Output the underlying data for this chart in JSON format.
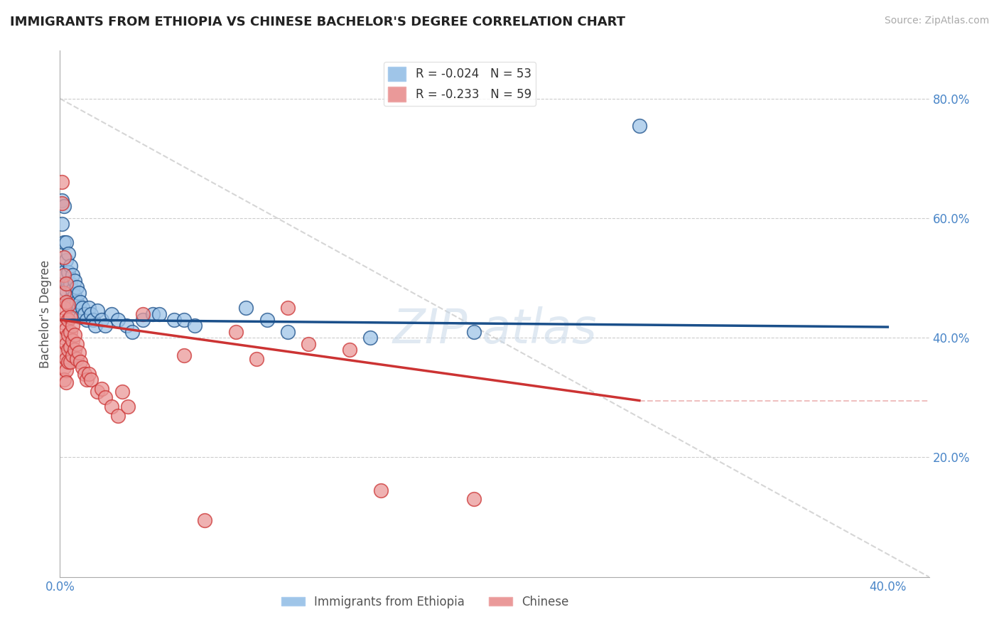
{
  "title": "IMMIGRANTS FROM ETHIOPIA VS CHINESE BACHELOR'S DEGREE CORRELATION CHART",
  "source": "Source: ZipAtlas.com",
  "ylabel": "Bachelor's Degree",
  "xlim": [
    0.0,
    0.42
  ],
  "ylim": [
    0.0,
    0.88
  ],
  "x_ticks": [
    0.0,
    0.05,
    0.1,
    0.15,
    0.2,
    0.25,
    0.3,
    0.35,
    0.4
  ],
  "y_ticks": [
    0.0,
    0.2,
    0.4,
    0.6,
    0.8
  ],
  "legend_blue_label": "R = -0.024   N = 53",
  "legend_pink_label": "R = -0.233   N = 59",
  "legend_bottom_blue": "Immigrants from Ethiopia",
  "legend_bottom_pink": "Chinese",
  "blue_color": "#9fc5e8",
  "pink_color": "#ea9999",
  "blue_line_color": "#1a4f8a",
  "pink_line_color": "#cc3333",
  "watermark": "ZIP atlas",
  "background_color": "#ffffff",
  "grid_color": "#cccccc",
  "title_color": "#222222",
  "tick_label_color": "#4a86c8",
  "blue_scatter": [
    [
      0.001,
      0.63
    ],
    [
      0.001,
      0.59
    ],
    [
      0.002,
      0.62
    ],
    [
      0.002,
      0.56
    ],
    [
      0.002,
      0.51
    ],
    [
      0.003,
      0.56
    ],
    [
      0.003,
      0.53
    ],
    [
      0.003,
      0.49
    ],
    [
      0.003,
      0.48
    ],
    [
      0.004,
      0.54
    ],
    [
      0.004,
      0.51
    ],
    [
      0.004,
      0.49
    ],
    [
      0.004,
      0.46
    ],
    [
      0.005,
      0.52
    ],
    [
      0.005,
      0.49
    ],
    [
      0.005,
      0.465
    ],
    [
      0.006,
      0.505
    ],
    [
      0.006,
      0.48
    ],
    [
      0.006,
      0.455
    ],
    [
      0.007,
      0.495
    ],
    [
      0.007,
      0.47
    ],
    [
      0.008,
      0.485
    ],
    [
      0.008,
      0.46
    ],
    [
      0.009,
      0.475
    ],
    [
      0.009,
      0.45
    ],
    [
      0.01,
      0.46
    ],
    [
      0.01,
      0.435
    ],
    [
      0.011,
      0.45
    ],
    [
      0.012,
      0.44
    ],
    [
      0.013,
      0.43
    ],
    [
      0.014,
      0.45
    ],
    [
      0.015,
      0.44
    ],
    [
      0.016,
      0.43
    ],
    [
      0.017,
      0.42
    ],
    [
      0.018,
      0.445
    ],
    [
      0.02,
      0.43
    ],
    [
      0.022,
      0.42
    ],
    [
      0.025,
      0.44
    ],
    [
      0.028,
      0.43
    ],
    [
      0.032,
      0.42
    ],
    [
      0.035,
      0.41
    ],
    [
      0.04,
      0.43
    ],
    [
      0.045,
      0.44
    ],
    [
      0.048,
      0.44
    ],
    [
      0.055,
      0.43
    ],
    [
      0.06,
      0.43
    ],
    [
      0.065,
      0.42
    ],
    [
      0.09,
      0.45
    ],
    [
      0.1,
      0.43
    ],
    [
      0.11,
      0.41
    ],
    [
      0.15,
      0.4
    ],
    [
      0.2,
      0.41
    ],
    [
      0.28,
      0.755
    ]
  ],
  "pink_scatter": [
    [
      0.001,
      0.66
    ],
    [
      0.001,
      0.625
    ],
    [
      0.002,
      0.535
    ],
    [
      0.002,
      0.505
    ],
    [
      0.002,
      0.475
    ],
    [
      0.002,
      0.45
    ],
    [
      0.002,
      0.425
    ],
    [
      0.002,
      0.4
    ],
    [
      0.002,
      0.375
    ],
    [
      0.002,
      0.35
    ],
    [
      0.002,
      0.33
    ],
    [
      0.003,
      0.49
    ],
    [
      0.003,
      0.46
    ],
    [
      0.003,
      0.435
    ],
    [
      0.003,
      0.415
    ],
    [
      0.003,
      0.39
    ],
    [
      0.003,
      0.365
    ],
    [
      0.003,
      0.345
    ],
    [
      0.003,
      0.325
    ],
    [
      0.004,
      0.455
    ],
    [
      0.004,
      0.43
    ],
    [
      0.004,
      0.405
    ],
    [
      0.004,
      0.38
    ],
    [
      0.004,
      0.36
    ],
    [
      0.005,
      0.435
    ],
    [
      0.005,
      0.41
    ],
    [
      0.005,
      0.385
    ],
    [
      0.005,
      0.36
    ],
    [
      0.006,
      0.42
    ],
    [
      0.006,
      0.395
    ],
    [
      0.006,
      0.37
    ],
    [
      0.007,
      0.405
    ],
    [
      0.007,
      0.38
    ],
    [
      0.008,
      0.39
    ],
    [
      0.008,
      0.365
    ],
    [
      0.009,
      0.375
    ],
    [
      0.01,
      0.36
    ],
    [
      0.011,
      0.35
    ],
    [
      0.012,
      0.34
    ],
    [
      0.013,
      0.33
    ],
    [
      0.014,
      0.34
    ],
    [
      0.015,
      0.33
    ],
    [
      0.018,
      0.31
    ],
    [
      0.02,
      0.315
    ],
    [
      0.022,
      0.3
    ],
    [
      0.025,
      0.285
    ],
    [
      0.028,
      0.27
    ],
    [
      0.03,
      0.31
    ],
    [
      0.033,
      0.285
    ],
    [
      0.04,
      0.44
    ],
    [
      0.06,
      0.37
    ],
    [
      0.07,
      0.095
    ],
    [
      0.085,
      0.41
    ],
    [
      0.095,
      0.365
    ],
    [
      0.11,
      0.45
    ],
    [
      0.12,
      0.39
    ],
    [
      0.14,
      0.38
    ],
    [
      0.155,
      0.145
    ],
    [
      0.2,
      0.13
    ]
  ]
}
